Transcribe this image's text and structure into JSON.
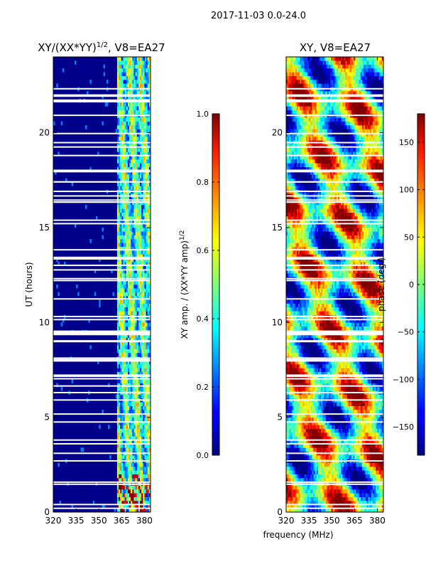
{
  "suptitle": "2017-11-03 0.0-24.0",
  "xlabel": "frequency (MHz)",
  "chart_data": [
    {
      "type": "heatmap",
      "title": "XY/(XX*YY)",
      "title_sup": "1/2",
      "title_suffix": ", V8=EA27",
      "xlabel": "frequency (MHz)",
      "ylabel": "UT (hours)",
      "xlim": [
        320,
        384
      ],
      "ylim": [
        0,
        24
      ],
      "xticks": [
        "320",
        "335",
        "350",
        "365",
        "380"
      ],
      "yticks": [
        "0",
        "5",
        "10",
        "15",
        "20"
      ],
      "colorbar": {
        "label": "XY amp. / (XX*YY amp)",
        "label_sup": "1/2",
        "range": [
          0.0,
          1.0
        ],
        "ticks": [
          "0.0",
          "0.2",
          "0.4",
          "0.6",
          "0.8",
          "1.0"
        ],
        "colormap": "jet"
      }
    },
    {
      "type": "heatmap",
      "title": "XY, V8=EA27",
      "xlabel": "frequency (MHz)",
      "ylabel": "",
      "xlim": [
        320,
        384
      ],
      "ylim": [
        0,
        24
      ],
      "xticks": [
        "320",
        "335",
        "350",
        "365",
        "380"
      ],
      "yticks": [
        "0",
        "5",
        "10",
        "15",
        "20"
      ],
      "colorbar": {
        "label": "phase (deg.)",
        "range": [
          -180,
          180
        ],
        "ticks": [
          "150",
          "100",
          "50",
          "0",
          "−50",
          "−100",
          "−150"
        ],
        "colormap": "jet"
      }
    }
  ]
}
